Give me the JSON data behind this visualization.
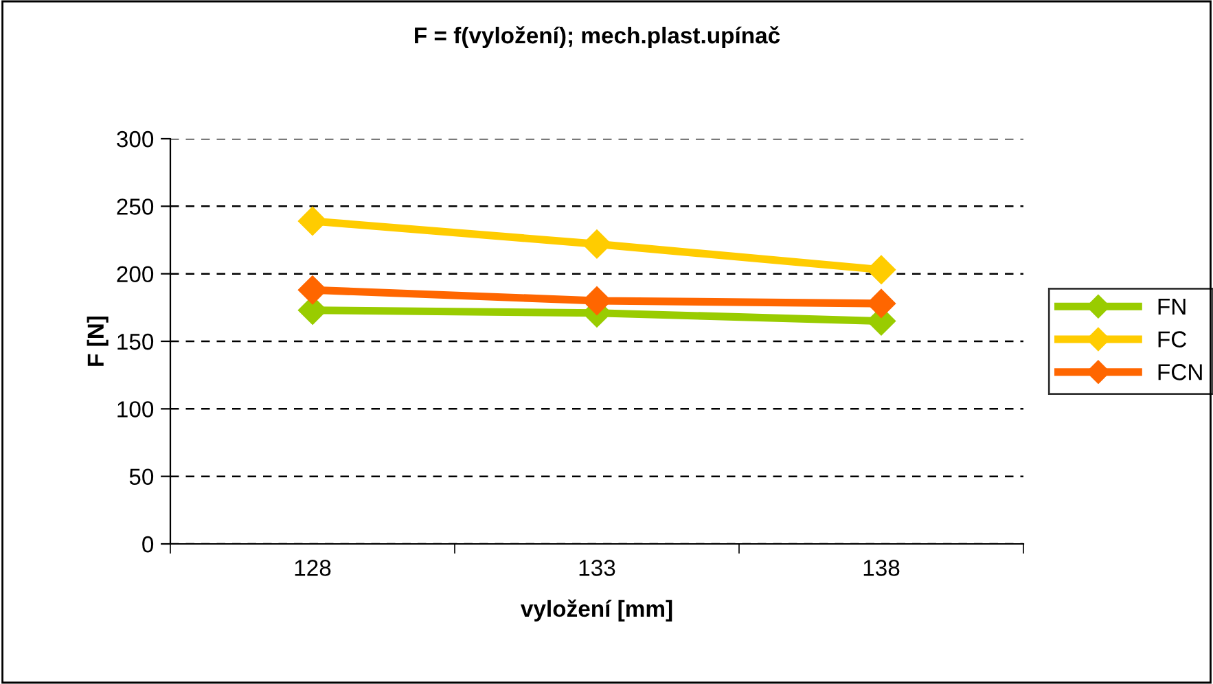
{
  "chart_data": {
    "type": "line",
    "title": "F = f(vyložení); mech.plast.upínač",
    "xlabel": "vyložení [mm]",
    "ylabel": "F [N]",
    "categories": [
      "128",
      "133",
      "138"
    ],
    "series": [
      {
        "name": "FN",
        "color": "#99cc00",
        "values": [
          173,
          171,
          165
        ]
      },
      {
        "name": "FC",
        "color": "#ffcc00",
        "values": [
          239,
          222,
          203
        ]
      },
      {
        "name": "FCN",
        "color": "#ff6600",
        "values": [
          188,
          180,
          178
        ]
      }
    ],
    "ylim": [
      0,
      300
    ],
    "yticks": [
      0,
      50,
      100,
      150,
      200,
      250,
      300
    ],
    "grid": "y",
    "legend": "right",
    "marker": "diamond",
    "line_style": "solid"
  }
}
